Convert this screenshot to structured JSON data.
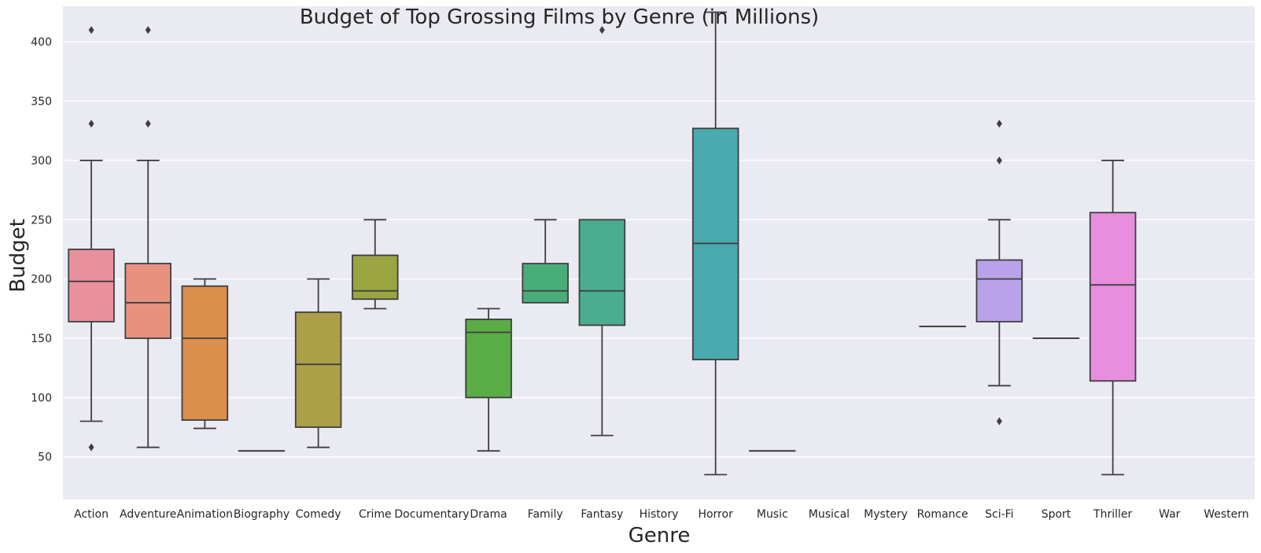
{
  "chart_data": {
    "type": "box",
    "title": "Budget of Top Grossing Films by Genre (in Millions)",
    "xlabel": "Genre",
    "ylabel": "Budget",
    "ylim": [
      14,
      430
    ],
    "yticks": [
      50,
      100,
      150,
      200,
      250,
      300,
      350,
      400
    ],
    "grid": true,
    "legend": "none",
    "categories": [
      "Action",
      "Adventure",
      "Animation",
      "Biography",
      "Comedy",
      "Crime",
      "Documentary",
      "Drama",
      "Family",
      "Fantasy",
      "History",
      "Horror",
      "Music",
      "Musical",
      "Mystery",
      "Romance",
      "Sci-Fi",
      "Sport",
      "Thriller",
      "War",
      "Western"
    ],
    "boxes": [
      {
        "genre": "Action",
        "color": "#e8919d",
        "whisker_low": 80,
        "q1": 164,
        "median": 198,
        "q3": 225,
        "whisker_high": 300,
        "outliers": [
          410,
          331,
          58
        ]
      },
      {
        "genre": "Adventure",
        "color": "#e8917f",
        "whisker_low": 58,
        "q1": 150,
        "median": 180,
        "q3": 213,
        "whisker_high": 300,
        "outliers": [
          410,
          331
        ]
      },
      {
        "genre": "Animation",
        "color": "#da8f4c",
        "whisker_low": 74,
        "q1": 81,
        "median": 150,
        "q3": 194,
        "whisker_high": 200,
        "outliers": []
      },
      {
        "genre": "Biography",
        "color": "#c49a4c",
        "whisker_low": 55,
        "q1": 55,
        "median": 55,
        "q3": 55,
        "whisker_high": 55,
        "outliers": []
      },
      {
        "genre": "Comedy",
        "color": "#ac9f47",
        "whisker_low": 58,
        "q1": 75,
        "median": 128,
        "q3": 172,
        "whisker_high": 200,
        "outliers": []
      },
      {
        "genre": "Crime",
        "color": "#9aa440",
        "whisker_low": 175,
        "q1": 183,
        "median": 190,
        "q3": 220,
        "whisker_high": 250,
        "outliers": []
      },
      {
        "genre": "Drama",
        "color": "#5aac45",
        "whisker_low": 55,
        "q1": 100,
        "median": 155,
        "q3": 166,
        "whisker_high": 175,
        "outliers": []
      },
      {
        "genre": "Family",
        "color": "#49ad7a",
        "whisker_low": 180,
        "q1": 180,
        "median": 190,
        "q3": 213,
        "whisker_high": 250,
        "outliers": []
      },
      {
        "genre": "Fantasy",
        "color": "#4aad8f",
        "whisker_low": 68,
        "q1": 161,
        "median": 190,
        "q3": 250,
        "whisker_high": 250,
        "outliers": [
          410
        ]
      },
      {
        "genre": "Horror",
        "color": "#4aaaad",
        "whisker_low": 35,
        "q1": 132,
        "median": 230,
        "q3": 327,
        "whisker_high": 425,
        "outliers": []
      },
      {
        "genre": "Music",
        "color": "#4aa8bf",
        "whisker_low": 55,
        "q1": 55,
        "median": 55,
        "q3": 55,
        "whisker_high": 55,
        "outliers": []
      },
      {
        "genre": "Romance",
        "color": "#8fa6e8",
        "whisker_low": 160,
        "q1": 160,
        "median": 160,
        "q3": 160,
        "whisker_high": 160,
        "outliers": []
      },
      {
        "genre": "Sci-Fi",
        "color": "#b9a2ea",
        "whisker_low": 110,
        "q1": 164,
        "median": 200,
        "q3": 216,
        "whisker_high": 250,
        "outliers": [
          331,
          300,
          80
        ]
      },
      {
        "genre": "Sport",
        "color": "#d88fe5",
        "whisker_low": 150,
        "q1": 150,
        "median": 150,
        "q3": 150,
        "whisker_high": 150,
        "outliers": []
      },
      {
        "genre": "Thriller",
        "color": "#e88ede",
        "whisker_low": 35,
        "q1": 114,
        "median": 195,
        "q3": 256,
        "whisker_high": 300,
        "outliers": []
      }
    ]
  }
}
